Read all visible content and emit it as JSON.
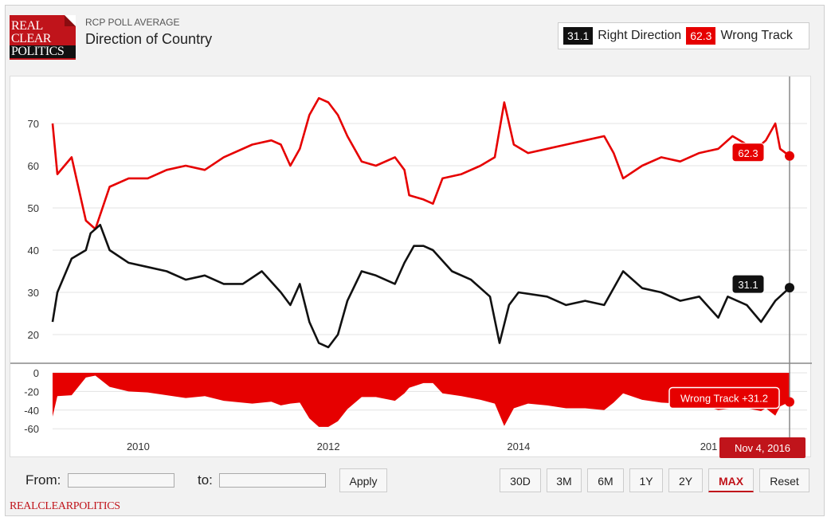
{
  "header": {
    "logo": [
      "REAL",
      "CLEAR",
      "POLITICS"
    ],
    "sup_title": "RCP POLL AVERAGE",
    "title": "Direction of Country"
  },
  "legend": {
    "items": [
      {
        "value": "31.1",
        "name": "Right Direction",
        "color": "#111111"
      },
      {
        "value": "62.3",
        "name": "Wrong Track",
        "color": "#e60000"
      }
    ]
  },
  "chart_data": [
    {
      "type": "line",
      "x_ticks": [
        "2010",
        "2012",
        "2014",
        "201"
      ],
      "y_ticks": [
        20,
        30,
        40,
        50,
        60,
        70
      ],
      "ylim": [
        15,
        77
      ],
      "grid": true,
      "series": [
        {
          "name": "Wrong Track",
          "color": "#e60000",
          "points": [
            [
              2009.1,
              70
            ],
            [
              2009.15,
              58
            ],
            [
              2009.3,
              62
            ],
            [
              2009.45,
              47
            ],
            [
              2009.55,
              45
            ],
            [
              2009.7,
              55
            ],
            [
              2009.9,
              57
            ],
            [
              2010.1,
              57
            ],
            [
              2010.3,
              59
            ],
            [
              2010.5,
              60
            ],
            [
              2010.7,
              59
            ],
            [
              2010.9,
              62
            ],
            [
              2011.2,
              65
            ],
            [
              2011.4,
              66
            ],
            [
              2011.5,
              65
            ],
            [
              2011.6,
              60
            ],
            [
              2011.7,
              64
            ],
            [
              2011.8,
              72
            ],
            [
              2011.9,
              76
            ],
            [
              2012.0,
              75
            ],
            [
              2012.1,
              72
            ],
            [
              2012.2,
              67
            ],
            [
              2012.35,
              61
            ],
            [
              2012.5,
              60
            ],
            [
              2012.7,
              62
            ],
            [
              2012.8,
              59
            ],
            [
              2012.85,
              53
            ],
            [
              2013.0,
              52
            ],
            [
              2013.1,
              51
            ],
            [
              2013.2,
              57
            ],
            [
              2013.4,
              58
            ],
            [
              2013.6,
              60
            ],
            [
              2013.75,
              62
            ],
            [
              2013.85,
              75
            ],
            [
              2013.95,
              65
            ],
            [
              2014.1,
              63
            ],
            [
              2014.3,
              64
            ],
            [
              2014.5,
              65
            ],
            [
              2014.7,
              66
            ],
            [
              2014.9,
              67
            ],
            [
              2015.0,
              63
            ],
            [
              2015.1,
              57
            ],
            [
              2015.3,
              60
            ],
            [
              2015.5,
              62
            ],
            [
              2015.7,
              61
            ],
            [
              2015.9,
              63
            ],
            [
              2016.1,
              64
            ],
            [
              2016.25,
              67
            ],
            [
              2016.4,
              65
            ],
            [
              2016.5,
              64
            ],
            [
              2016.6,
              66
            ],
            [
              2016.7,
              70
            ],
            [
              2016.75,
              64
            ],
            [
              2016.85,
              62.3
            ]
          ]
        },
        {
          "name": "Right Direction",
          "color": "#111111",
          "points": [
            [
              2009.1,
              23
            ],
            [
              2009.15,
              30
            ],
            [
              2009.3,
              38
            ],
            [
              2009.45,
              40
            ],
            [
              2009.5,
              44
            ],
            [
              2009.6,
              46
            ],
            [
              2009.7,
              40
            ],
            [
              2009.9,
              37
            ],
            [
              2010.1,
              36
            ],
            [
              2010.3,
              35
            ],
            [
              2010.5,
              33
            ],
            [
              2010.7,
              34
            ],
            [
              2010.9,
              32
            ],
            [
              2011.1,
              32
            ],
            [
              2011.3,
              35
            ],
            [
              2011.5,
              30
            ],
            [
              2011.6,
              27
            ],
            [
              2011.7,
              32
            ],
            [
              2011.8,
              23
            ],
            [
              2011.9,
              18
            ],
            [
              2012.0,
              17
            ],
            [
              2012.1,
              20
            ],
            [
              2012.2,
              28
            ],
            [
              2012.35,
              35
            ],
            [
              2012.5,
              34
            ],
            [
              2012.7,
              32
            ],
            [
              2012.8,
              37
            ],
            [
              2012.9,
              41
            ],
            [
              2013.0,
              41
            ],
            [
              2013.1,
              40
            ],
            [
              2013.3,
              35
            ],
            [
              2013.5,
              33
            ],
            [
              2013.6,
              31
            ],
            [
              2013.7,
              29
            ],
            [
              2013.8,
              18
            ],
            [
              2013.9,
              27
            ],
            [
              2014.0,
              30
            ],
            [
              2014.3,
              29
            ],
            [
              2014.5,
              27
            ],
            [
              2014.7,
              28
            ],
            [
              2014.9,
              27
            ],
            [
              2015.0,
              31
            ],
            [
              2015.1,
              35
            ],
            [
              2015.3,
              31
            ],
            [
              2015.5,
              30
            ],
            [
              2015.7,
              28
            ],
            [
              2015.9,
              29
            ],
            [
              2016.1,
              24
            ],
            [
              2016.2,
              29
            ],
            [
              2016.4,
              27
            ],
            [
              2016.55,
              23
            ],
            [
              2016.7,
              28
            ],
            [
              2016.85,
              31.1
            ]
          ]
        }
      ],
      "last_labels": [
        {
          "series": "Wrong Track",
          "text": "62.3"
        },
        {
          "series": "Right Direction",
          "text": "31.1"
        }
      ]
    },
    {
      "type": "area",
      "name": "Spread",
      "y_ticks": [
        0,
        -20,
        -40,
        -60
      ],
      "ylim": [
        -65,
        2
      ],
      "color": "#e60000",
      "points": [
        [
          2009.1,
          -47
        ],
        [
          2009.15,
          -25
        ],
        [
          2009.3,
          -24
        ],
        [
          2009.45,
          -5
        ],
        [
          2009.55,
          -3
        ],
        [
          2009.7,
          -15
        ],
        [
          2009.9,
          -20
        ],
        [
          2010.1,
          -21
        ],
        [
          2010.3,
          -24
        ],
        [
          2010.5,
          -27
        ],
        [
          2010.7,
          -25
        ],
        [
          2010.9,
          -30
        ],
        [
          2011.2,
          -33
        ],
        [
          2011.4,
          -31
        ],
        [
          2011.5,
          -35
        ],
        [
          2011.6,
          -33
        ],
        [
          2011.7,
          -32
        ],
        [
          2011.8,
          -49
        ],
        [
          2011.9,
          -58
        ],
        [
          2012.0,
          -58
        ],
        [
          2012.1,
          -52
        ],
        [
          2012.2,
          -39
        ],
        [
          2012.35,
          -26
        ],
        [
          2012.5,
          -26
        ],
        [
          2012.7,
          -30
        ],
        [
          2012.8,
          -22
        ],
        [
          2012.85,
          -16
        ],
        [
          2013.0,
          -11
        ],
        [
          2013.1,
          -11
        ],
        [
          2013.2,
          -22
        ],
        [
          2013.4,
          -25
        ],
        [
          2013.6,
          -29
        ],
        [
          2013.75,
          -33
        ],
        [
          2013.85,
          -57
        ],
        [
          2013.95,
          -38
        ],
        [
          2014.1,
          -33
        ],
        [
          2014.3,
          -35
        ],
        [
          2014.5,
          -38
        ],
        [
          2014.7,
          -38
        ],
        [
          2014.9,
          -40
        ],
        [
          2015.0,
          -32
        ],
        [
          2015.1,
          -22
        ],
        [
          2015.3,
          -29
        ],
        [
          2015.5,
          -32
        ],
        [
          2015.7,
          -33
        ],
        [
          2015.9,
          -34
        ],
        [
          2016.1,
          -40
        ],
        [
          2016.25,
          -38
        ],
        [
          2016.4,
          -38
        ],
        [
          2016.55,
          -41
        ],
        [
          2016.6,
          -38
        ],
        [
          2016.7,
          -46
        ],
        [
          2016.75,
          -36
        ],
        [
          2016.85,
          -31.2
        ]
      ],
      "last_label": "Wrong Track +31.2"
    }
  ],
  "crosshair_date": "Nov 4, 2016",
  "controls": {
    "from_label": "From:",
    "to_label": "to:",
    "apply_label": "Apply",
    "ranges": [
      "30D",
      "3M",
      "6M",
      "1Y",
      "2Y",
      "MAX",
      "Reset"
    ],
    "active_range": "MAX"
  },
  "footer": {
    "brand": "REALCLEARPOLITICS"
  }
}
